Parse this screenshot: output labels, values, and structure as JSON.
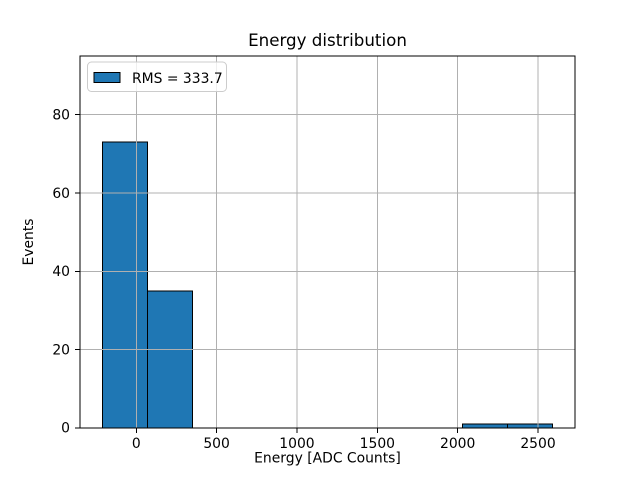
{
  "chart_data": {
    "type": "bar",
    "subtype": "histogram",
    "title": "Energy distribution",
    "xlabel": "Energy [ADC Counts]",
    "ylabel": "Events",
    "bin_edges": [
      -210,
      70,
      350,
      630,
      910,
      1190,
      1470,
      1750,
      2030,
      2310,
      2590
    ],
    "counts": [
      73,
      35,
      0,
      0,
      0,
      0,
      0,
      0,
      1,
      1
    ],
    "xlim": [
      -350,
      2730
    ],
    "ylim": [
      0,
      95
    ],
    "xticks": [
      0,
      500,
      1000,
      1500,
      2000,
      2500
    ],
    "yticks": [
      0,
      20,
      40,
      60,
      80
    ],
    "grid": true,
    "grid_above_bars": true,
    "legend": {
      "position": "upper left",
      "entries": [
        {
          "label": "RMS = 333.7",
          "swatch_fill": "#1f77b4",
          "swatch_edge": "#000000"
        }
      ]
    },
    "colors": {
      "bar_fill": "#1f77b4",
      "bar_edge": "#000000",
      "grid": "#b0b0b0",
      "spine": "#000000",
      "tick": "#000000",
      "text": "#000000",
      "legend_border": "#cccccc",
      "background": "#ffffff"
    }
  }
}
